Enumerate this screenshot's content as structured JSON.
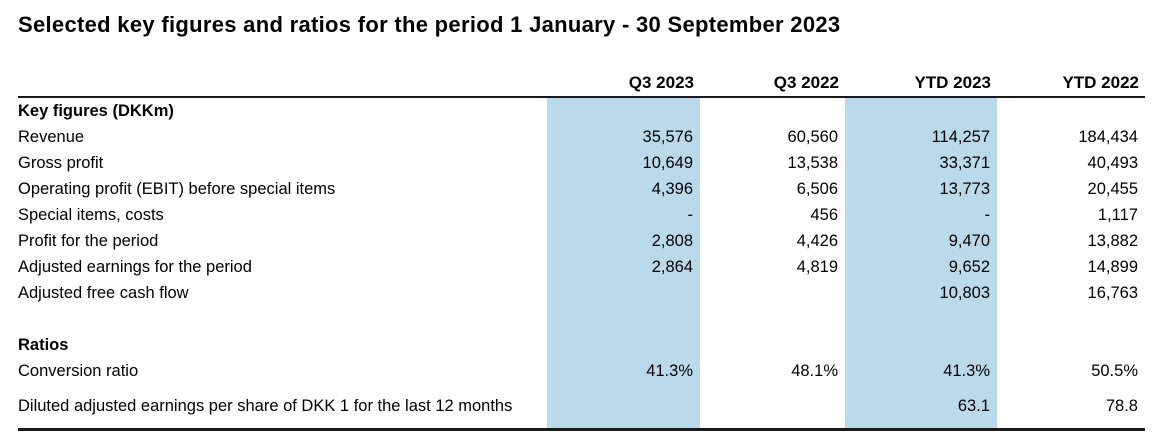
{
  "title": "Selected key figures and ratios for the period 1 January - 30 September 2023",
  "table": {
    "columns": [
      "",
      "Q3 2023",
      "Q3 2022",
      "YTD 2023",
      "YTD 2022"
    ],
    "highlighted_columns": [
      "Q3 2023",
      "YTD 2023"
    ],
    "highlight_color": "#BAD9EA",
    "rows": [
      {
        "label": "Key figures (DKKm)",
        "bold": true,
        "values": [
          "",
          "",
          "",
          ""
        ]
      },
      {
        "label": "Revenue",
        "bold": false,
        "values": [
          "35,576",
          "60,560",
          "114,257",
          "184,434"
        ]
      },
      {
        "label": "Gross profit",
        "bold": false,
        "values": [
          "10,649",
          "13,538",
          "33,371",
          "40,493"
        ]
      },
      {
        "label": "Operating profit (EBIT) before special items",
        "bold": false,
        "values": [
          "4,396",
          "6,506",
          "13,773",
          "20,455"
        ]
      },
      {
        "label": "Special items, costs",
        "bold": false,
        "values": [
          "-",
          "456",
          "-",
          "1,117"
        ]
      },
      {
        "label": "Profit for the period",
        "bold": false,
        "values": [
          "2,808",
          "4,426",
          "9,470",
          "13,882"
        ]
      },
      {
        "label": "Adjusted earnings for the period",
        "bold": false,
        "values": [
          "2,864",
          "4,819",
          "9,652",
          "14,899"
        ]
      },
      {
        "label": "Adjusted free cash flow",
        "bold": false,
        "values": [
          "",
          "",
          "10,803",
          "16,763"
        ]
      },
      {
        "label": "",
        "bold": false,
        "values": [
          "",
          "",
          "",
          ""
        ]
      },
      {
        "label": "Ratios",
        "bold": true,
        "values": [
          "",
          "",
          "",
          ""
        ]
      },
      {
        "label": "Conversion ratio",
        "bold": false,
        "values": [
          "41.3%",
          "48.1%",
          "41.3%",
          "50.5%"
        ]
      },
      {
        "label": "Diluted adjusted earnings per share of DKK 1 for the last 12 months",
        "bold": false,
        "values": [
          "",
          "",
          "63.1",
          "78.8"
        ]
      }
    ]
  }
}
